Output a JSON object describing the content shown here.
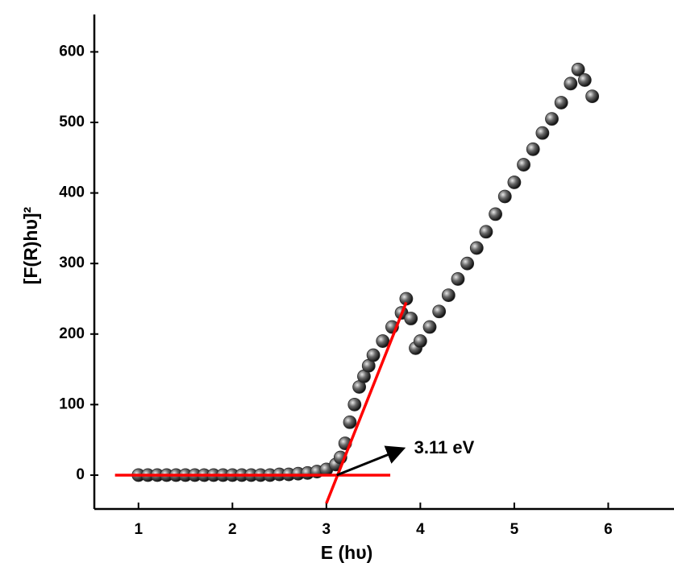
{
  "chart_data": {
    "type": "scatter",
    "x_label": "E (hυ)",
    "y_label": "[F(R)hυ]²",
    "xlim": [
      0.53,
      6.7
    ],
    "ylim": [
      -48,
      653
    ],
    "xticks": [
      1,
      2,
      3,
      4,
      5,
      6
    ],
    "yticks": [
      0,
      100,
      200,
      300,
      400,
      500,
      600
    ],
    "series": [
      {
        "color": "#2b2b2b",
        "x": [
          1.0,
          1.1,
          1.2,
          1.3,
          1.4,
          1.5,
          1.6,
          1.7,
          1.8,
          1.9,
          2.0,
          2.1,
          2.2,
          2.3,
          2.4,
          2.5,
          2.6,
          2.7,
          2.8,
          2.9,
          3.0,
          3.1,
          3.15,
          3.2,
          3.25,
          3.3,
          3.35,
          3.4,
          3.45,
          3.5,
          3.6,
          3.7,
          3.8,
          3.85,
          3.9,
          3.95,
          4.0,
          4.1,
          4.2,
          4.3,
          4.4,
          4.5,
          4.6,
          4.7,
          4.8,
          4.9,
          5.0,
          5.1,
          5.2,
          5.3,
          5.4,
          5.5,
          5.6,
          5.68,
          5.75,
          5.83
        ],
        "values": [
          0,
          0,
          0,
          0,
          0,
          0,
          0,
          0,
          0,
          0,
          0,
          0,
          0,
          0,
          0,
          1,
          1,
          2,
          3,
          5,
          8,
          15,
          25,
          45,
          75,
          100,
          125,
          140,
          155,
          170,
          190,
          210,
          230,
          250,
          222,
          180,
          190,
          210,
          232,
          255,
          278,
          300,
          322,
          345,
          370,
          395,
          415,
          440,
          462,
          485,
          505,
          528,
          555,
          575,
          560,
          537
        ]
      }
    ],
    "fit_lines": [
      {
        "color": "#ff0000",
        "x": [
          0.75,
          3.68
        ],
        "y": [
          0,
          0
        ]
      },
      {
        "color": "#ff0000",
        "x": [
          3.0,
          3.85
        ],
        "y": [
          -40,
          245
        ]
      }
    ],
    "annotation": {
      "text": "3.11 eV",
      "x": 3.11,
      "y": 0
    }
  }
}
